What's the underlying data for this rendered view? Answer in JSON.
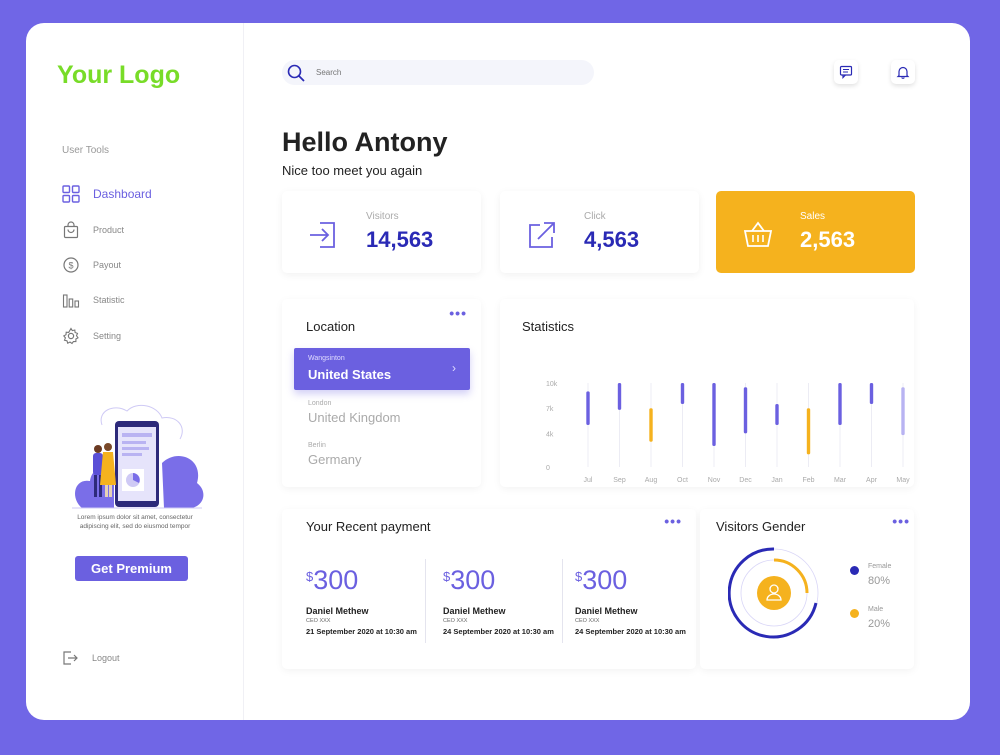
{
  "brand": {
    "logo_text": "Your Logo"
  },
  "sidebar": {
    "section_label": "User Tools",
    "items": [
      {
        "label": "Dashboard",
        "icon": "grid-icon",
        "active": true
      },
      {
        "label": "Product",
        "icon": "bag-icon",
        "active": false
      },
      {
        "label": "Payout",
        "icon": "dollar-coin-icon",
        "active": false
      },
      {
        "label": "Statistic",
        "icon": "bar-chart-icon",
        "active": false
      },
      {
        "label": "Setting",
        "icon": "gear-icon",
        "active": false
      }
    ],
    "promo_text": "Lorem ipsum dolor sit amet, consectetur adipiscing elit, sed do eiusmod tempor",
    "premium_label": "Get Premium",
    "logout_label": "Logout"
  },
  "header": {
    "search_placeholder": "Search",
    "greeting": "Hello Antony",
    "subgreeting": "Nice too meet you again"
  },
  "stats": [
    {
      "label": "Visitors",
      "value": "14,563",
      "icon": "enter-icon"
    },
    {
      "label": "Click",
      "value": "4,563",
      "icon": "external-link-icon"
    },
    {
      "label": "Sales",
      "value": "2,563",
      "icon": "basket-icon"
    }
  ],
  "location": {
    "title": "Location",
    "items": [
      {
        "city": "Wangsinton",
        "country": "United States",
        "active": true
      },
      {
        "city": "London",
        "country": "United Kingdom",
        "active": false
      },
      {
        "city": "Berlin",
        "country": "Germany",
        "active": false
      }
    ]
  },
  "chart_data": {
    "type": "bar",
    "title": "Statistics",
    "categories": [
      "Jul",
      "Sep",
      "Aug",
      "Oct",
      "Nov",
      "Dec",
      "Jan",
      "Feb",
      "Mar",
      "Apr",
      "May"
    ],
    "y_ticks": [
      "10k",
      "7k",
      "4k",
      "0"
    ],
    "ylim": [
      0,
      10000
    ],
    "ranges": [
      {
        "low": 5000,
        "high": 9000,
        "color": "#6b60e0"
      },
      {
        "low": 6800,
        "high": 10000,
        "color": "#6b60e0"
      },
      {
        "low": 3000,
        "high": 7000,
        "color": "#f5b21e"
      },
      {
        "low": 7500,
        "high": 10000,
        "color": "#6b60e0"
      },
      {
        "low": 2500,
        "high": 10000,
        "color": "#6b60e0"
      },
      {
        "low": 4000,
        "high": 9500,
        "color": "#6b60e0"
      },
      {
        "low": 5000,
        "high": 7500,
        "color": "#6b60e0"
      },
      {
        "low": 1500,
        "high": 7000,
        "color": "#f5b21e"
      },
      {
        "low": 5000,
        "high": 10000,
        "color": "#6b60e0"
      },
      {
        "low": 7500,
        "high": 10000,
        "color": "#6b60e0"
      },
      {
        "low": 3800,
        "high": 9500,
        "color": "#b8b3f2"
      }
    ],
    "grid": true
  },
  "payments": {
    "title": "Your Recent payment",
    "items": [
      {
        "currency": "$",
        "amount": "300",
        "name": "Daniel Methew",
        "role": "CEO XXX",
        "date": "21 September 2020 at 10:30 am"
      },
      {
        "currency": "$",
        "amount": "300",
        "name": "Daniel Methew",
        "role": "CEO XXX",
        "date": "24 September 2020 at 10:30 am"
      },
      {
        "currency": "$",
        "amount": "300",
        "name": "Daniel Methew",
        "role": "CEO XXX",
        "date": "24 September 2020 at 10:30 am"
      }
    ]
  },
  "gender": {
    "title": "Visitors Gender",
    "legend": [
      {
        "label": "Female",
        "pct": "80%",
        "color": "#2a2ab5"
      },
      {
        "label": "Male",
        "pct": "20%",
        "color": "#f5b21e"
      }
    ]
  },
  "colors": {
    "accent": "#6b60e0",
    "brand_green": "#78dc28",
    "sales": "#f5b21e",
    "value_blue": "#2a2ab5"
  }
}
